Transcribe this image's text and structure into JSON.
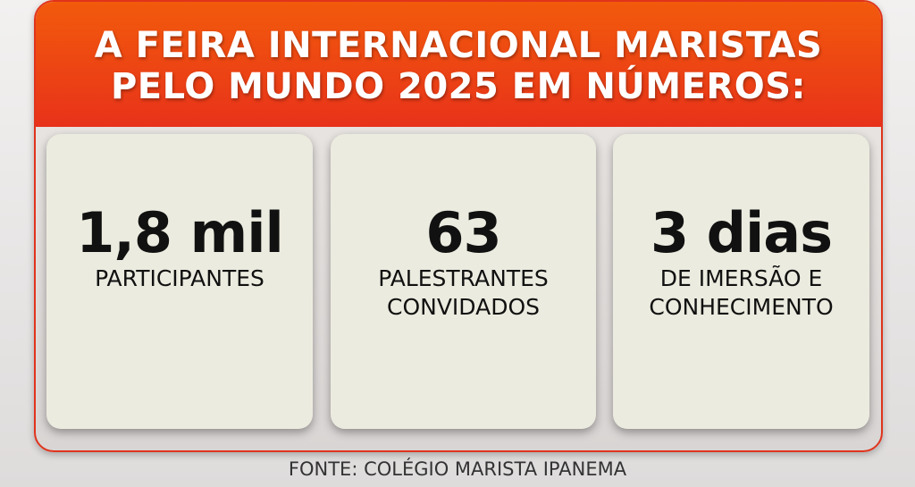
{
  "header": {
    "title_lines": [
      "A FEIRA INTERNACIONAL MARISTAS",
      "PELO MUNDO 2025 EM NÚMEROS:"
    ]
  },
  "cards": [
    {
      "value": "1,8 mil",
      "label_lines": [
        "PARTICIPANTES"
      ]
    },
    {
      "value": "63",
      "label_lines": [
        "PALESTRANTES",
        "CONVIDADOS"
      ]
    },
    {
      "value": "3 dias",
      "label_lines": [
        "DE IMERSÃO E",
        "CONHECIMENTO"
      ]
    }
  ],
  "footer": {
    "source": "FONTE: COLÉGIO MARISTA IPANEMA"
  }
}
